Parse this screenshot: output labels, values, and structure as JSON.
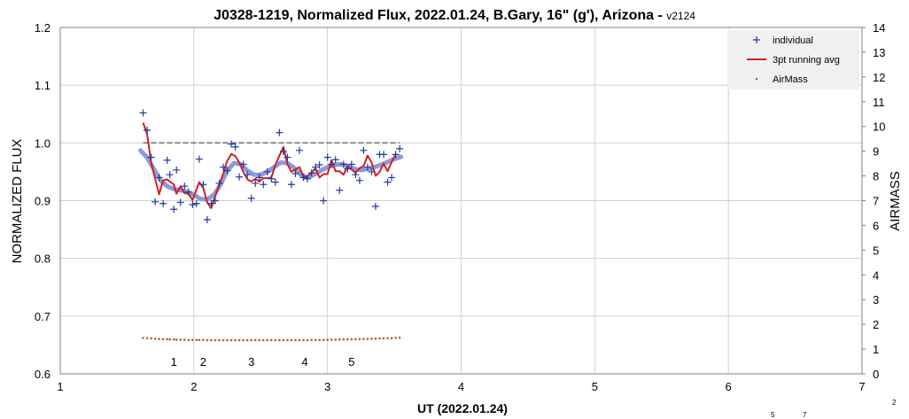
{
  "chart_data": {
    "type": "scatter",
    "title": "J0328-1219, Normalized Flux, 2022.01.24, B.Gary, 16\" (g'), Arizona - ",
    "title_suffix": "v2124",
    "xlabel": "UT (2022.01.24)",
    "ylabel": "NORMALIZED FLUX",
    "y2label": "AIRMASS",
    "xlim": [
      1,
      7
    ],
    "ylim": [
      0.6,
      1.2
    ],
    "y2lim": [
      0,
      14
    ],
    "grid": true,
    "legend_position": "top-right",
    "x_ticks": [
      "1",
      "2",
      "3",
      "4",
      "5",
      "6",
      "7"
    ],
    "y_ticks": [
      "0.6",
      "0.7",
      "0.8",
      "0.9",
      "1.0",
      "1.1",
      "1.2"
    ],
    "y2_ticks": [
      "0",
      "1",
      "2",
      "3",
      "4",
      "5",
      "6",
      "7",
      "8",
      "9",
      "10",
      "11",
      "12",
      "13",
      "14"
    ],
    "series": [
      {
        "name": "individual",
        "style": "plus",
        "color": "#1f3c99",
        "x": [
          1.62,
          1.65,
          1.68,
          1.71,
          1.74,
          1.77,
          1.8,
          1.82,
          1.85,
          1.87,
          1.9,
          1.93,
          1.96,
          1.99,
          2.02,
          2.04,
          2.07,
          2.1,
          2.13,
          2.16,
          2.19,
          2.22,
          2.25,
          2.28,
          2.31,
          2.34,
          2.37,
          2.4,
          2.43,
          2.46,
          2.49,
          2.52,
          2.55,
          2.58,
          2.61,
          2.64,
          2.67,
          2.7,
          2.73,
          2.76,
          2.79,
          2.82,
          2.85,
          2.88,
          2.91,
          2.94,
          2.97,
          3.0,
          3.03,
          3.06,
          3.09,
          3.12,
          3.15,
          3.18,
          3.21,
          3.24,
          3.27,
          3.3,
          3.33,
          3.36,
          3.39,
          3.42,
          3.45,
          3.48,
          3.51,
          3.54
        ],
        "y": [
          1.052,
          1.022,
          0.975,
          0.898,
          0.94,
          0.895,
          0.97,
          0.945,
          0.885,
          0.953,
          0.897,
          0.925,
          0.915,
          0.893,
          0.895,
          0.972,
          0.928,
          0.867,
          0.895,
          0.9,
          0.93,
          0.958,
          0.952,
          0.998,
          0.993,
          0.941,
          0.963,
          0.945,
          0.904,
          0.93,
          0.94,
          0.928,
          0.95,
          0.938,
          0.932,
          1.018,
          0.985,
          0.975,
          0.928,
          0.947,
          0.987,
          0.94,
          0.938,
          0.948,
          0.958,
          0.962,
          0.9,
          0.975,
          0.963,
          0.971,
          0.918,
          0.963,
          0.955,
          0.963,
          0.945,
          0.935,
          0.987,
          0.958,
          0.95,
          0.89,
          0.98,
          0.98,
          0.932,
          0.94,
          0.98,
          0.99
        ]
      },
      {
        "name": "3pt running avg",
        "style": "line",
        "color": "#d42020",
        "x": [
          1.62,
          1.65,
          1.68,
          1.71,
          1.74,
          1.77,
          1.8,
          1.82,
          1.85,
          1.87,
          1.9,
          1.93,
          1.96,
          1.99,
          2.02,
          2.04,
          2.07,
          2.1,
          2.13,
          2.16,
          2.19,
          2.22,
          2.25,
          2.28,
          2.31,
          2.34,
          2.37,
          2.4,
          2.43,
          2.46,
          2.49,
          2.52,
          2.55,
          2.58,
          2.61,
          2.64,
          2.67,
          2.7,
          2.73,
          2.76,
          2.79,
          2.82,
          2.85,
          2.88,
          2.91,
          2.94,
          2.97,
          3.0,
          3.03,
          3.06,
          3.09,
          3.12,
          3.15,
          3.18,
          3.21,
          3.24,
          3.27,
          3.3,
          3.33,
          3.36,
          3.39,
          3.42,
          3.45,
          3.48,
          3.51
        ],
        "y": [
          1.035,
          1.016,
          0.965,
          0.938,
          0.911,
          0.935,
          0.937,
          0.933,
          0.928,
          0.912,
          0.925,
          0.913,
          0.912,
          0.901,
          0.92,
          0.932,
          0.922,
          0.897,
          0.887,
          0.908,
          0.928,
          0.947,
          0.969,
          0.981,
          0.977,
          0.966,
          0.95,
          0.937,
          0.933,
          0.938,
          0.933,
          0.939,
          0.939,
          0.94,
          0.962,
          0.978,
          0.993,
          0.963,
          0.95,
          0.954,
          0.958,
          0.942,
          0.942,
          0.949,
          0.956,
          0.94,
          0.946,
          0.946,
          0.97,
          0.951,
          0.951,
          0.945,
          0.96,
          0.954,
          0.948,
          0.956,
          0.96,
          0.978,
          0.966,
          0.943,
          0.95,
          0.964,
          0.951,
          0.967,
          0.98
        ]
      },
      {
        "name": "",
        "style": "smooth",
        "color": "#7f8fd9",
        "x": [
          1.6,
          1.65,
          1.7,
          1.75,
          1.8,
          1.85,
          1.9,
          1.95,
          2.0,
          2.05,
          2.1,
          2.15,
          2.2,
          2.25,
          2.3,
          2.35,
          2.4,
          2.45,
          2.5,
          2.55,
          2.6,
          2.65,
          2.7,
          2.75,
          2.8,
          2.85,
          2.9,
          2.95,
          3.0,
          3.05,
          3.1,
          3.15,
          3.2,
          3.25,
          3.3,
          3.35,
          3.4,
          3.45,
          3.5,
          3.55
        ],
        "y": [
          0.987,
          0.975,
          0.955,
          0.935,
          0.925,
          0.92,
          0.918,
          0.915,
          0.91,
          0.903,
          0.902,
          0.91,
          0.928,
          0.952,
          0.965,
          0.963,
          0.952,
          0.945,
          0.945,
          0.95,
          0.958,
          0.966,
          0.965,
          0.957,
          0.945,
          0.94,
          0.945,
          0.952,
          0.958,
          0.962,
          0.963,
          0.96,
          0.955,
          0.953,
          0.955,
          0.958,
          0.962,
          0.967,
          0.972,
          0.976
        ]
      },
      {
        "name": "",
        "style": "dashed",
        "color": "#707070",
        "x": [
          1.62,
          3.54
        ],
        "y": [
          1.0,
          1.0
        ]
      },
      {
        "name": "AirMass",
        "style": "dots",
        "axis": "y2",
        "color": "#b5651d",
        "x": [
          1.62,
          1.65,
          1.68,
          1.71,
          1.74,
          1.77,
          1.8,
          1.82,
          1.85,
          1.87,
          1.9,
          1.93,
          1.96,
          1.99,
          2.02,
          2.04,
          2.07,
          2.1,
          2.13,
          2.16,
          2.19,
          2.22,
          2.25,
          2.28,
          2.31,
          2.34,
          2.37,
          2.4,
          2.43,
          2.46,
          2.49,
          2.52,
          2.55,
          2.58,
          2.61,
          2.64,
          2.67,
          2.7,
          2.73,
          2.76,
          2.79,
          2.82,
          2.85,
          2.88,
          2.91,
          2.94,
          2.97,
          3.0,
          3.03,
          3.06,
          3.09,
          3.12,
          3.15,
          3.18,
          3.21,
          3.24,
          3.27,
          3.3,
          3.33,
          3.36,
          3.39,
          3.42,
          3.45,
          3.48,
          3.51,
          3.54
        ],
        "y": [
          1.45,
          1.44,
          1.43,
          1.42,
          1.41,
          1.4,
          1.4,
          1.39,
          1.39,
          1.38,
          1.38,
          1.38,
          1.37,
          1.37,
          1.37,
          1.37,
          1.37,
          1.36,
          1.36,
          1.36,
          1.36,
          1.36,
          1.36,
          1.36,
          1.36,
          1.36,
          1.36,
          1.36,
          1.36,
          1.36,
          1.36,
          1.36,
          1.36,
          1.36,
          1.36,
          1.36,
          1.36,
          1.36,
          1.36,
          1.36,
          1.36,
          1.36,
          1.36,
          1.37,
          1.37,
          1.37,
          1.37,
          1.38,
          1.38,
          1.38,
          1.39,
          1.39,
          1.39,
          1.4,
          1.4,
          1.4,
          1.41,
          1.41,
          1.42,
          1.42,
          1.43,
          1.43,
          1.44,
          1.44,
          1.45,
          1.46
        ]
      }
    ],
    "annotations": [
      {
        "label": "1",
        "x": 1.85
      },
      {
        "label": "2",
        "x": 2.07
      },
      {
        "label": "3",
        "x": 2.43
      },
      {
        "label": "4",
        "x": 2.83
      },
      {
        "label": "5",
        "x": 3.18
      }
    ],
    "corner_labels": [
      "2",
      "5",
      "7"
    ]
  }
}
